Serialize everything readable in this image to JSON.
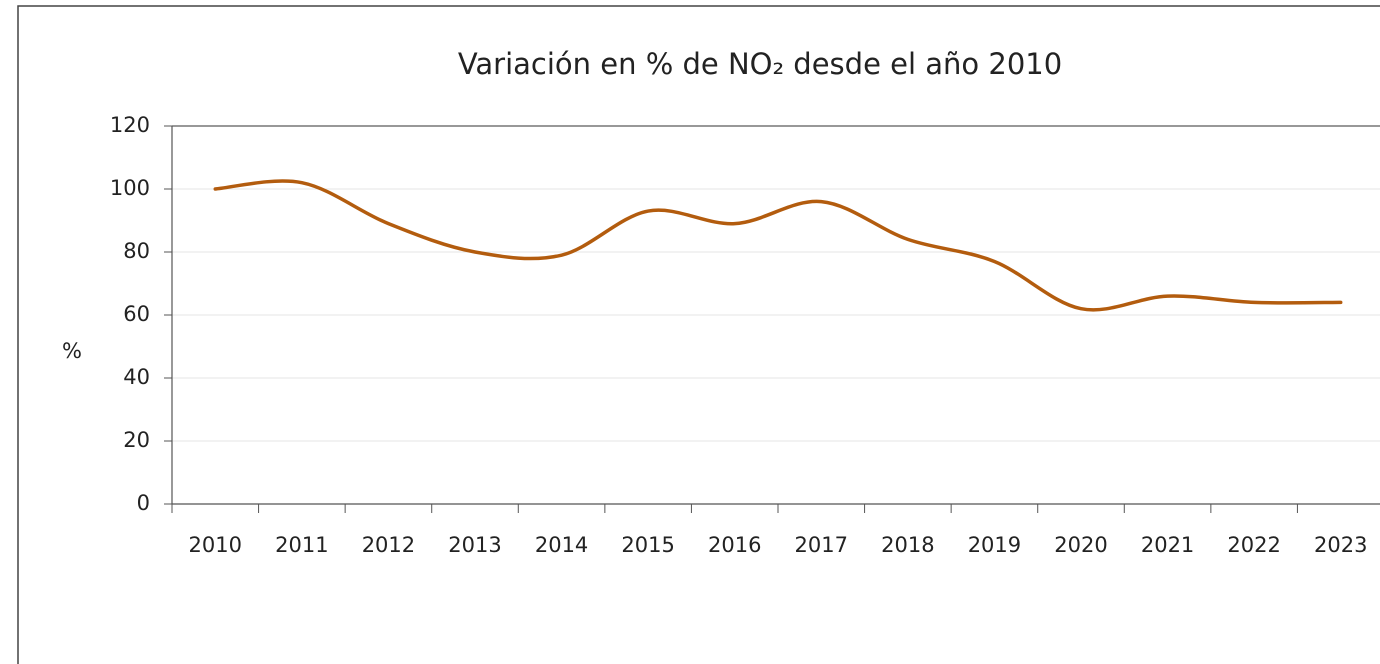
{
  "chart_data": {
    "type": "line",
    "title": "Variación en % de NO₂ desde el año 2010",
    "y_label": "%",
    "categories": [
      "2010",
      "2011",
      "2012",
      "2013",
      "2014",
      "2015",
      "2016",
      "2017",
      "2018",
      "2019",
      "2020",
      "2021",
      "2022",
      "2023"
    ],
    "values": [
      100,
      102,
      89,
      80,
      79,
      93,
      89,
      96,
      84,
      77,
      62,
      66,
      64,
      64
    ],
    "color": "#b35c0e",
    "smooth": true,
    "ylim": [
      0,
      120
    ],
    "yticks": [
      0,
      20,
      40,
      60,
      80,
      100,
      120
    ],
    "grid": true
  }
}
